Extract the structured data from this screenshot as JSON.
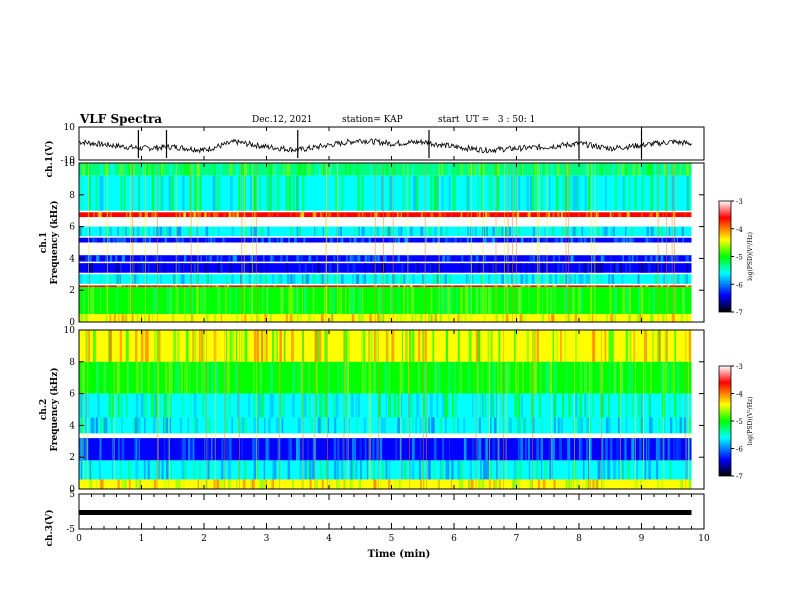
{
  "header": {
    "title": "VLF Spectra",
    "date": "Dec.12, 2021",
    "station": "station= KAP",
    "start_ut": "start  UT =   3 : 50: 1"
  },
  "colorbar": {
    "label": "log(PSD)(V²/Hz)",
    "ticks": [
      "-3",
      "-4",
      "-5",
      "-6",
      "-7"
    ],
    "stops": [
      "#ffffff",
      "#ff0000",
      "#ffff00",
      "#00ff00",
      "#00ffff",
      "#0000ff",
      "#000000"
    ]
  },
  "chart_data": [
    {
      "type": "line",
      "name": "ch1-waveform",
      "ylabel": "ch.1(V)",
      "ylim": [
        -10,
        10
      ],
      "yticks": [
        "10",
        "-10"
      ],
      "x": [
        0,
        0.5,
        1,
        1.5,
        2,
        2.5,
        3,
        3.5,
        4,
        4.5,
        5,
        5.5,
        6,
        6.5,
        7,
        7.5,
        8,
        8.5,
        9,
        9.5,
        9.8
      ],
      "y": [
        1,
        -1,
        -3,
        -2,
        -4,
        1,
        -2,
        -4,
        -1,
        2,
        0,
        1,
        -2,
        -4,
        -3,
        -2,
        0,
        -3,
        -1,
        1,
        0
      ]
    },
    {
      "type": "heatmap",
      "name": "ch1-spectrogram",
      "ylabel": "ch.1\nFrequency (kHz)",
      "ylim": [
        0,
        10
      ],
      "yticks": [
        "0",
        "2",
        "4",
        "6",
        "8",
        "10"
      ],
      "xlim": [
        0,
        9.8
      ],
      "bands": [
        {
          "f": [
            9.2,
            10
          ],
          "level": "green-cyan"
        },
        {
          "f": [
            7.0,
            9.2
          ],
          "level": "cyan-green"
        },
        {
          "f": [
            6.6,
            6.9
          ],
          "level": "red"
        },
        {
          "f": [
            5.4,
            6.0
          ],
          "level": "cyan"
        },
        {
          "f": [
            5.0,
            5.3
          ],
          "level": "blue"
        },
        {
          "f": [
            3.8,
            4.2
          ],
          "level": "blue"
        },
        {
          "f": [
            3.1,
            3.7
          ],
          "level": "dark-blue"
        },
        {
          "f": [
            2.4,
            3.0
          ],
          "level": "cyan"
        },
        {
          "f": [
            2.2,
            2.3
          ],
          "level": "red"
        },
        {
          "f": [
            0.5,
            2.2
          ],
          "level": "green"
        },
        {
          "f": [
            0,
            0.5
          ],
          "level": "yellow"
        }
      ]
    },
    {
      "type": "heatmap",
      "name": "ch2-spectrogram",
      "ylabel": "ch.2\nFrequency (kHz)",
      "ylim": [
        0,
        10
      ],
      "yticks": [
        "0",
        "2",
        "4",
        "6",
        "8",
        "10"
      ],
      "xlim": [
        0,
        9.8
      ],
      "bands": [
        {
          "f": [
            8.0,
            10
          ],
          "level": "yellow-green"
        },
        {
          "f": [
            6.0,
            8.0
          ],
          "level": "green"
        },
        {
          "f": [
            4.5,
            6.0
          ],
          "level": "cyan-green"
        },
        {
          "f": [
            3.5,
            4.5
          ],
          "level": "cyan"
        },
        {
          "f": [
            1.8,
            3.2
          ],
          "level": "blue"
        },
        {
          "f": [
            0.6,
            1.8
          ],
          "level": "cyan"
        },
        {
          "f": [
            0,
            0.6
          ],
          "level": "yellow"
        }
      ]
    },
    {
      "type": "line",
      "name": "ch3-waveform",
      "ylabel": "ch.3(V)",
      "ylim": [
        -5,
        5
      ],
      "yticks": [
        "5",
        "-5"
      ],
      "x": [
        0,
        9.8
      ],
      "y": [
        -0.3,
        -0.3
      ],
      "xlabel": "Time  (min)",
      "xticks": [
        "0",
        "1",
        "2",
        "3",
        "4",
        "5",
        "6",
        "7",
        "8",
        "9",
        "10"
      ],
      "xlim": [
        0,
        10
      ]
    }
  ]
}
